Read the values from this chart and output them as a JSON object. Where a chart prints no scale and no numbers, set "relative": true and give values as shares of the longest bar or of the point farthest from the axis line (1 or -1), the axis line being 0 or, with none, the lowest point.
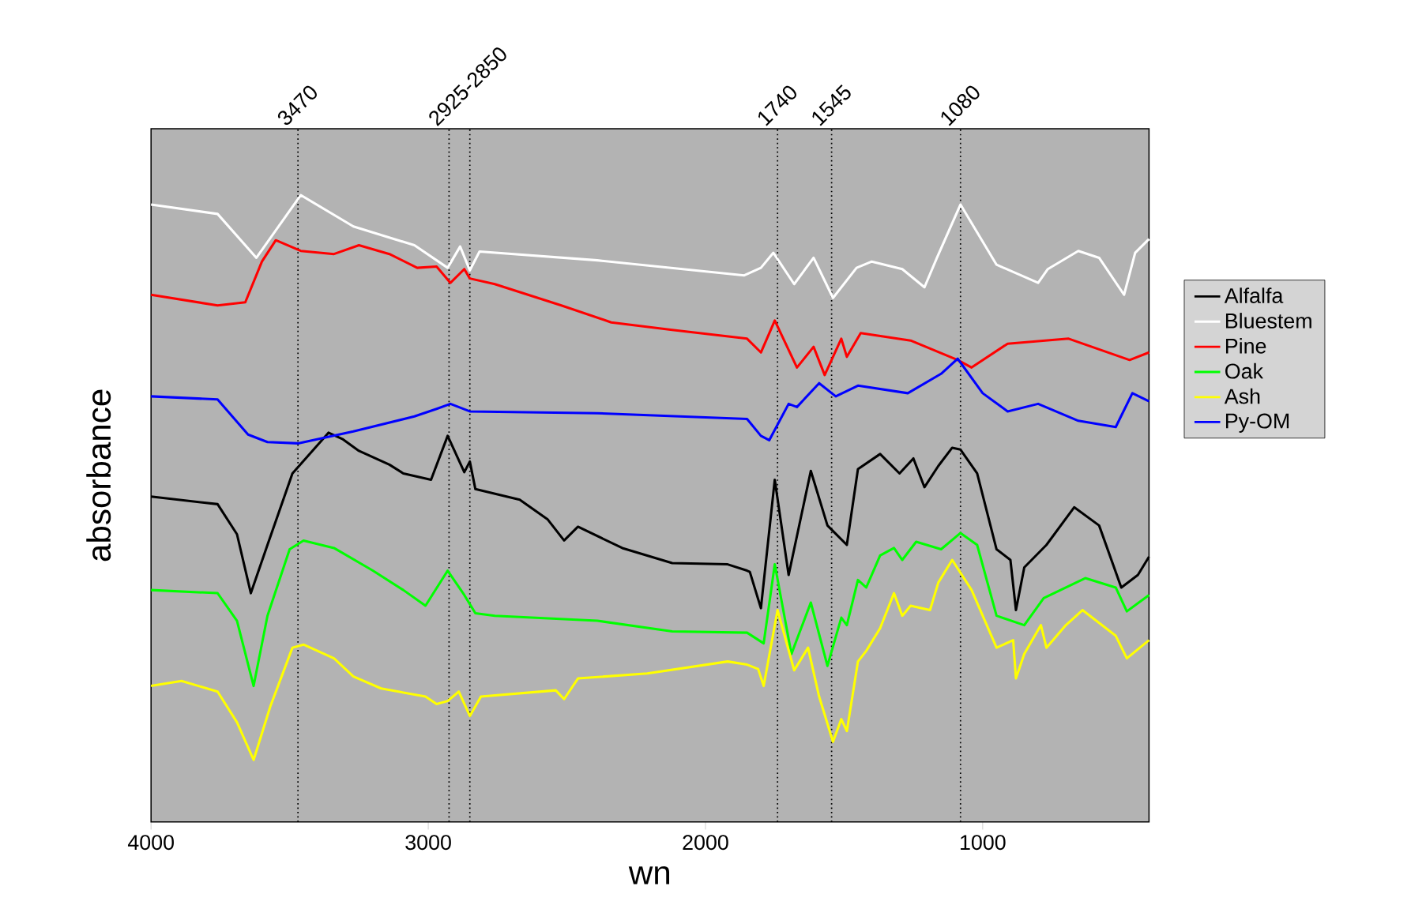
{
  "chart_data": {
    "type": "line",
    "xlabel": "wn",
    "ylabel": "absorbance",
    "relative": true,
    "xlim": [
      4000,
      400
    ],
    "xticks": [
      4000,
      3000,
      2000,
      1000
    ],
    "legend": "right",
    "ref_lines": [
      {
        "axis": "x",
        "value": 3470,
        "label": "3470",
        "line_style": "dotted",
        "color": "#000000"
      },
      {
        "axis": "x",
        "value": 2925,
        "label": "2925-2850",
        "line_style": "dotted",
        "color": "#000000"
      },
      {
        "axis": "x",
        "value": 2850,
        "line_style": "dotted",
        "color": "#000000"
      },
      {
        "axis": "x",
        "value": 1740,
        "label": "1740",
        "line_style": "dotted",
        "color": "#000000"
      },
      {
        "axis": "x",
        "value": 1545,
        "label": "1545",
        "line_style": "dotted",
        "color": "#000000"
      },
      {
        "axis": "x",
        "value": 1080,
        "label": "1080",
        "line_style": "dotted",
        "color": "#000000"
      }
    ],
    "series": [
      {
        "name": "Alfalfa",
        "color": "#000000",
        "x": [
          4000,
          3760,
          3690,
          3640,
          3580,
          3490,
          3360,
          3310,
          3250,
          3140,
          3090,
          2990,
          2930,
          2870,
          2850,
          2830,
          2670,
          2570,
          2510,
          2460,
          2300,
          2120,
          1920,
          1850,
          1840,
          1800,
          1750,
          1700,
          1620,
          1560,
          1490,
          1450,
          1370,
          1300,
          1250,
          1210,
          1160,
          1110,
          1080,
          1020,
          950,
          900,
          880,
          850,
          770,
          670,
          580,
          500,
          440,
          400
        ],
        "values": [
          0.519,
          0.507,
          0.459,
          0.365,
          0.442,
          0.556,
          0.621,
          0.611,
          0.592,
          0.57,
          0.556,
          0.546,
          0.616,
          0.558,
          0.575,
          0.531,
          0.514,
          0.483,
          0.449,
          0.471,
          0.437,
          0.413,
          0.411,
          0.401,
          0.399,
          0.341,
          0.546,
          0.394,
          0.56,
          0.473,
          0.442,
          0.563,
          0.587,
          0.556,
          0.58,
          0.534,
          0.568,
          0.597,
          0.594,
          0.556,
          0.435,
          0.418,
          0.338,
          0.406,
          0.442,
          0.502,
          0.473,
          0.374,
          0.394,
          0.423
        ]
      },
      {
        "name": "Bluestem",
        "color": "#ffffff",
        "x": [
          4000,
          3760,
          3620,
          3460,
          3270,
          3050,
          2930,
          2885,
          2850,
          2815,
          2390,
          1860,
          1800,
          1755,
          1680,
          1610,
          1540,
          1455,
          1400,
          1290,
          1210,
          1165,
          1080,
          950,
          800,
          765,
          655,
          580,
          490,
          450,
          400
        ],
        "values": [
          0.985,
          0.97,
          0.9,
          1.0,
          0.95,
          0.92,
          0.884,
          0.918,
          0.88,
          0.91,
          0.896,
          0.872,
          0.884,
          0.908,
          0.858,
          0.9,
          0.836,
          0.884,
          0.894,
          0.882,
          0.853,
          0.9,
          0.985,
          0.889,
          0.86,
          0.882,
          0.911,
          0.9,
          0.841,
          0.908,
          0.93
        ]
      },
      {
        "name": "Pine",
        "color": "#ff0000",
        "x": [
          4000,
          3760,
          3660,
          3600,
          3550,
          3460,
          3340,
          3250,
          3140,
          3040,
          2970,
          2920,
          2870,
          2850,
          2760,
          2520,
          2340,
          2120,
          1850,
          1800,
          1750,
          1670,
          1610,
          1570,
          1510,
          1490,
          1440,
          1260,
          1090,
          1040,
          910,
          690,
          470,
          400
        ],
        "values": [
          0.841,
          0.824,
          0.829,
          0.894,
          0.928,
          0.911,
          0.906,
          0.92,
          0.906,
          0.884,
          0.886,
          0.86,
          0.882,
          0.867,
          0.858,
          0.824,
          0.797,
          0.785,
          0.771,
          0.749,
          0.8,
          0.725,
          0.758,
          0.713,
          0.771,
          0.742,
          0.78,
          0.768,
          0.737,
          0.725,
          0.763,
          0.771,
          0.737,
          0.749
        ]
      },
      {
        "name": "Oak",
        "color": "#00ff00",
        "x": [
          4000,
          3760,
          3690,
          3630,
          3580,
          3500,
          3450,
          3340,
          3200,
          3090,
          3010,
          2930,
          2870,
          2830,
          2760,
          2390,
          2120,
          1850,
          1790,
          1750,
          1690,
          1620,
          1560,
          1510,
          1490,
          1450,
          1420,
          1370,
          1320,
          1290,
          1240,
          1150,
          1080,
          1020,
          950,
          850,
          780,
          630,
          520,
          480,
          400
        ],
        "values": [
          0.37,
          0.365,
          0.321,
          0.217,
          0.329,
          0.435,
          0.449,
          0.437,
          0.401,
          0.37,
          0.345,
          0.401,
          0.362,
          0.333,
          0.329,
          0.321,
          0.304,
          0.302,
          0.285,
          0.411,
          0.268,
          0.35,
          0.249,
          0.326,
          0.314,
          0.386,
          0.374,
          0.425,
          0.437,
          0.418,
          0.447,
          0.435,
          0.461,
          0.442,
          0.329,
          0.314,
          0.357,
          0.389,
          0.374,
          0.336,
          0.362
        ]
      },
      {
        "name": "Ash",
        "color": "#ffff00",
        "x": [
          4000,
          3890,
          3760,
          3690,
          3630,
          3570,
          3490,
          3450,
          3340,
          3270,
          3170,
          3010,
          2970,
          2930,
          2890,
          2850,
          2810,
          2540,
          2510,
          2460,
          2210,
          1920,
          1850,
          1810,
          1790,
          1740,
          1680,
          1630,
          1590,
          1540,
          1510,
          1490,
          1450,
          1420,
          1370,
          1320,
          1290,
          1260,
          1190,
          1160,
          1110,
          1040,
          950,
          890,
          880,
          850,
          790,
          770,
          700,
          640,
          520,
          480,
          400
        ],
        "values": [
          0.217,
          0.225,
          0.208,
          0.159,
          0.099,
          0.184,
          0.278,
          0.283,
          0.261,
          0.232,
          0.213,
          0.2,
          0.188,
          0.193,
          0.208,
          0.169,
          0.2,
          0.21,
          0.196,
          0.229,
          0.237,
          0.256,
          0.251,
          0.244,
          0.217,
          0.338,
          0.242,
          0.278,
          0.2,
          0.128,
          0.164,
          0.145,
          0.256,
          0.273,
          0.309,
          0.365,
          0.329,
          0.345,
          0.338,
          0.382,
          0.418,
          0.37,
          0.278,
          0.29,
          0.229,
          0.268,
          0.314,
          0.278,
          0.314,
          0.338,
          0.297,
          0.261,
          0.29
        ]
      },
      {
        "name": "Py-OM",
        "color": "#0000ff",
        "x": [
          4000,
          3760,
          3650,
          3580,
          3470,
          3270,
          3050,
          2970,
          2920,
          2850,
          2390,
          1850,
          1800,
          1770,
          1700,
          1670,
          1590,
          1530,
          1450,
          1270,
          1150,
          1090,
          1000,
          910,
          800,
          655,
          520,
          460,
          400
        ],
        "values": [
          0.679,
          0.674,
          0.618,
          0.606,
          0.604,
          0.623,
          0.647,
          0.659,
          0.667,
          0.655,
          0.652,
          0.643,
          0.616,
          0.609,
          0.667,
          0.662,
          0.7,
          0.679,
          0.696,
          0.684,
          0.715,
          0.739,
          0.684,
          0.655,
          0.667,
          0.64,
          0.63,
          0.684,
          0.671
        ]
      }
    ]
  }
}
